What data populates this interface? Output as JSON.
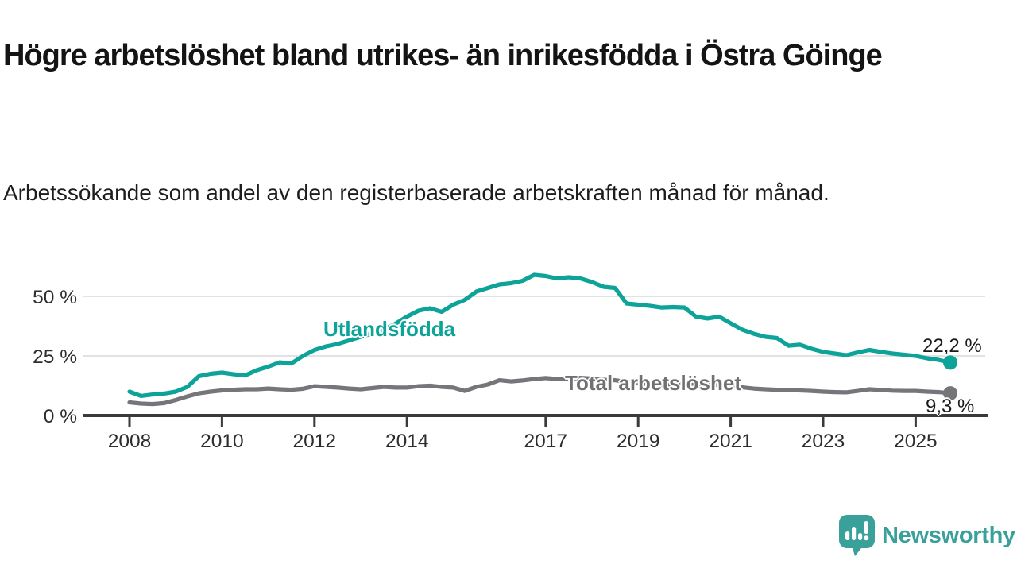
{
  "header": {
    "title": "Högre arbetslöshet bland utrikes- än inrikesfödda i Östra Göinge",
    "subtitle": "Arbetssökande som andel av den registerbaserade arbetskraften månad för månad."
  },
  "chart_data": {
    "type": "line",
    "title": "Högre arbetslöshet bland utrikes- än inrikesfödda i Östra Göinge",
    "subtitle": "Arbetssökande som andel av den registerbaserade arbetskraften månad för månad.",
    "unit": "%",
    "grid": true,
    "grid_color": "#d8d8d8",
    "axis_color": "#3a3a3a",
    "tick_text_color": "#2d2d2d",
    "x_axis": {
      "ticks": [
        2008,
        2010,
        2012,
        2014,
        2017,
        2019,
        2021,
        2023,
        2025
      ],
      "tick_labels": [
        "2008",
        "2010",
        "2012",
        "2014",
        "2017",
        "2019",
        "2021",
        "2023",
        "2025"
      ],
      "range": [
        2007,
        2026.4
      ]
    },
    "y_axis": {
      "ticks": [
        0,
        25,
        50
      ],
      "tick_labels": [
        "0 %",
        "25 %",
        "50 %"
      ],
      "range": [
        0,
        62
      ]
    },
    "series": [
      {
        "name": "Utlandsfödda",
        "color": "#0da399",
        "end_label": "22,2 %",
        "last_value": 22.2,
        "points": [
          [
            2008.0,
            10.0
          ],
          [
            2008.25,
            8.2
          ],
          [
            2008.5,
            8.8
          ],
          [
            2008.75,
            9.2
          ],
          [
            2009.0,
            10.0
          ],
          [
            2009.25,
            12.0
          ],
          [
            2009.5,
            16.5
          ],
          [
            2009.75,
            17.5
          ],
          [
            2010.0,
            18.0
          ],
          [
            2010.25,
            17.3
          ],
          [
            2010.5,
            16.8
          ],
          [
            2010.75,
            19.0
          ],
          [
            2011.0,
            20.5
          ],
          [
            2011.25,
            22.3
          ],
          [
            2011.5,
            21.8
          ],
          [
            2011.75,
            25.0
          ],
          [
            2012.0,
            27.5
          ],
          [
            2012.25,
            29.0
          ],
          [
            2012.5,
            30.0
          ],
          [
            2012.75,
            31.5
          ],
          [
            2013.0,
            33.0
          ],
          [
            2013.25,
            34.5
          ],
          [
            2013.5,
            36.0
          ],
          [
            2013.75,
            38.5
          ],
          [
            2014.0,
            41.5
          ],
          [
            2014.25,
            44.0
          ],
          [
            2014.5,
            45.0
          ],
          [
            2014.75,
            43.5
          ],
          [
            2015.0,
            46.5
          ],
          [
            2015.25,
            48.5
          ],
          [
            2015.5,
            52.0
          ],
          [
            2015.75,
            53.5
          ],
          [
            2016.0,
            55.0
          ],
          [
            2016.25,
            55.5
          ],
          [
            2016.5,
            56.5
          ],
          [
            2016.75,
            59.0
          ],
          [
            2017.0,
            58.5
          ],
          [
            2017.25,
            57.5
          ],
          [
            2017.5,
            58.0
          ],
          [
            2017.75,
            57.5
          ],
          [
            2018.0,
            56.0
          ],
          [
            2018.25,
            54.0
          ],
          [
            2018.5,
            53.5
          ],
          [
            2018.75,
            47.0
          ],
          [
            2019.0,
            46.5
          ],
          [
            2019.25,
            46.0
          ],
          [
            2019.5,
            45.3
          ],
          [
            2019.75,
            45.5
          ],
          [
            2020.0,
            45.3
          ],
          [
            2020.25,
            41.5
          ],
          [
            2020.5,
            40.7
          ],
          [
            2020.75,
            41.5
          ],
          [
            2021.0,
            38.7
          ],
          [
            2021.25,
            36.0
          ],
          [
            2021.5,
            34.3
          ],
          [
            2021.75,
            33.0
          ],
          [
            2022.0,
            32.5
          ],
          [
            2022.25,
            29.3
          ],
          [
            2022.5,
            29.7
          ],
          [
            2022.75,
            28.0
          ],
          [
            2023.0,
            26.7
          ],
          [
            2023.25,
            26.0
          ],
          [
            2023.5,
            25.3
          ],
          [
            2023.75,
            26.5
          ],
          [
            2024.0,
            27.5
          ],
          [
            2024.25,
            26.7
          ],
          [
            2024.5,
            26.0
          ],
          [
            2024.75,
            25.5
          ],
          [
            2025.0,
            25.0
          ],
          [
            2025.25,
            24.0
          ],
          [
            2025.5,
            23.3
          ],
          [
            2025.75,
            22.2
          ]
        ]
      },
      {
        "name": "Total arbetslöshet",
        "color": "#76767a",
        "end_label": "9,3 %",
        "last_value": 9.3,
        "points": [
          [
            2008.0,
            5.5
          ],
          [
            2008.25,
            5.0
          ],
          [
            2008.5,
            4.8
          ],
          [
            2008.75,
            5.2
          ],
          [
            2009.0,
            6.5
          ],
          [
            2009.25,
            8.0
          ],
          [
            2009.5,
            9.3
          ],
          [
            2009.75,
            10.0
          ],
          [
            2010.0,
            10.5
          ],
          [
            2010.25,
            10.8
          ],
          [
            2010.5,
            11.0
          ],
          [
            2010.75,
            11.0
          ],
          [
            2011.0,
            11.3
          ],
          [
            2011.25,
            11.0
          ],
          [
            2011.5,
            10.8
          ],
          [
            2011.75,
            11.2
          ],
          [
            2012.0,
            12.3
          ],
          [
            2012.25,
            12.0
          ],
          [
            2012.5,
            11.7
          ],
          [
            2012.75,
            11.3
          ],
          [
            2013.0,
            11.0
          ],
          [
            2013.25,
            11.5
          ],
          [
            2013.5,
            12.0
          ],
          [
            2013.75,
            11.7
          ],
          [
            2014.0,
            11.7
          ],
          [
            2014.25,
            12.3
          ],
          [
            2014.5,
            12.5
          ],
          [
            2014.75,
            12.0
          ],
          [
            2015.0,
            11.7
          ],
          [
            2015.25,
            10.3
          ],
          [
            2015.5,
            12.0
          ],
          [
            2015.75,
            13.0
          ],
          [
            2016.0,
            14.8
          ],
          [
            2016.25,
            14.3
          ],
          [
            2016.5,
            14.7
          ],
          [
            2016.75,
            15.3
          ],
          [
            2017.0,
            15.7
          ],
          [
            2017.25,
            15.3
          ],
          [
            2017.5,
            15.5
          ],
          [
            2017.75,
            15.8
          ],
          [
            2018.0,
            15.5
          ],
          [
            2018.25,
            15.0
          ],
          [
            2018.5,
            14.8
          ],
          [
            2018.75,
            14.0
          ],
          [
            2019.0,
            13.5
          ],
          [
            2019.25,
            13.2
          ],
          [
            2019.5,
            13.0
          ],
          [
            2019.75,
            13.2
          ],
          [
            2020.0,
            13.5
          ],
          [
            2020.25,
            13.3
          ],
          [
            2020.5,
            13.0
          ],
          [
            2020.75,
            12.8
          ],
          [
            2021.0,
            12.3
          ],
          [
            2021.25,
            11.8
          ],
          [
            2021.5,
            11.3
          ],
          [
            2021.75,
            11.0
          ],
          [
            2022.0,
            10.8
          ],
          [
            2022.25,
            10.8
          ],
          [
            2022.5,
            10.5
          ],
          [
            2022.75,
            10.3
          ],
          [
            2023.0,
            10.0
          ],
          [
            2023.25,
            9.8
          ],
          [
            2023.5,
            9.7
          ],
          [
            2023.75,
            10.3
          ],
          [
            2024.0,
            11.0
          ],
          [
            2024.25,
            10.7
          ],
          [
            2024.5,
            10.4
          ],
          [
            2024.75,
            10.3
          ],
          [
            2025.0,
            10.3
          ],
          [
            2025.25,
            10.0
          ],
          [
            2025.5,
            9.8
          ],
          [
            2025.75,
            9.3
          ]
        ]
      }
    ],
    "legend_position": "inline-labels"
  },
  "logo": {
    "text": "Newsworthy",
    "color": "#3aa09a"
  }
}
